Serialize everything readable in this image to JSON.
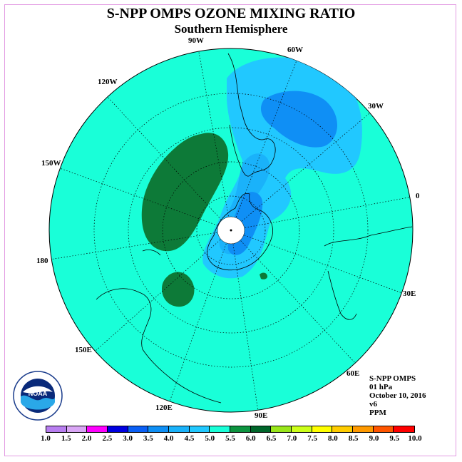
{
  "title": "S-NPP OMPS OZONE MIXING RATIO",
  "subtitle": "Southern Hemisphere",
  "info": {
    "instrument": "S-NPP OMPS",
    "level": "01 hPa",
    "date": "October 10, 2016",
    "version": "v6",
    "units": "PPM"
  },
  "longitude_labels": [
    "90W",
    "60W",
    "30W",
    "0",
    "30E",
    "60E",
    "90E",
    "120E",
    "150E",
    "180",
    "150W",
    "120W"
  ],
  "logo_text": "NOAA",
  "colorbar": {
    "ticks": [
      "1.0",
      "1.5",
      "2.0",
      "2.5",
      "3.0",
      "3.5",
      "4.0",
      "4.5",
      "5.0",
      "5.5",
      "6.0",
      "6.5",
      "7.0",
      "7.5",
      "8.0",
      "8.5",
      "9.0",
      "9.5",
      "10.0"
    ],
    "colors": [
      "#b87ef0",
      "#d9a6f5",
      "#ff00ff",
      "#0000e0",
      "#0a5ff5",
      "#0f8ff5",
      "#1ab2fa",
      "#21c8ff",
      "#19ffd8",
      "#0d9440",
      "#00662a",
      "#99e61a",
      "#ccff19",
      "#ffff00",
      "#ffcc00",
      "#ff9900",
      "#ff5500",
      "#ff0000",
      "#7a4b2a"
    ]
  },
  "colors": {
    "background_field": "#19ffd8",
    "low_ozone_light": "#21c8ff",
    "low_ozone_mid": "#1ab2fa",
    "low_ozone_dark": "#0f8ff5",
    "high_ozone": "#0d7a38",
    "frame": "#e39be3"
  }
}
